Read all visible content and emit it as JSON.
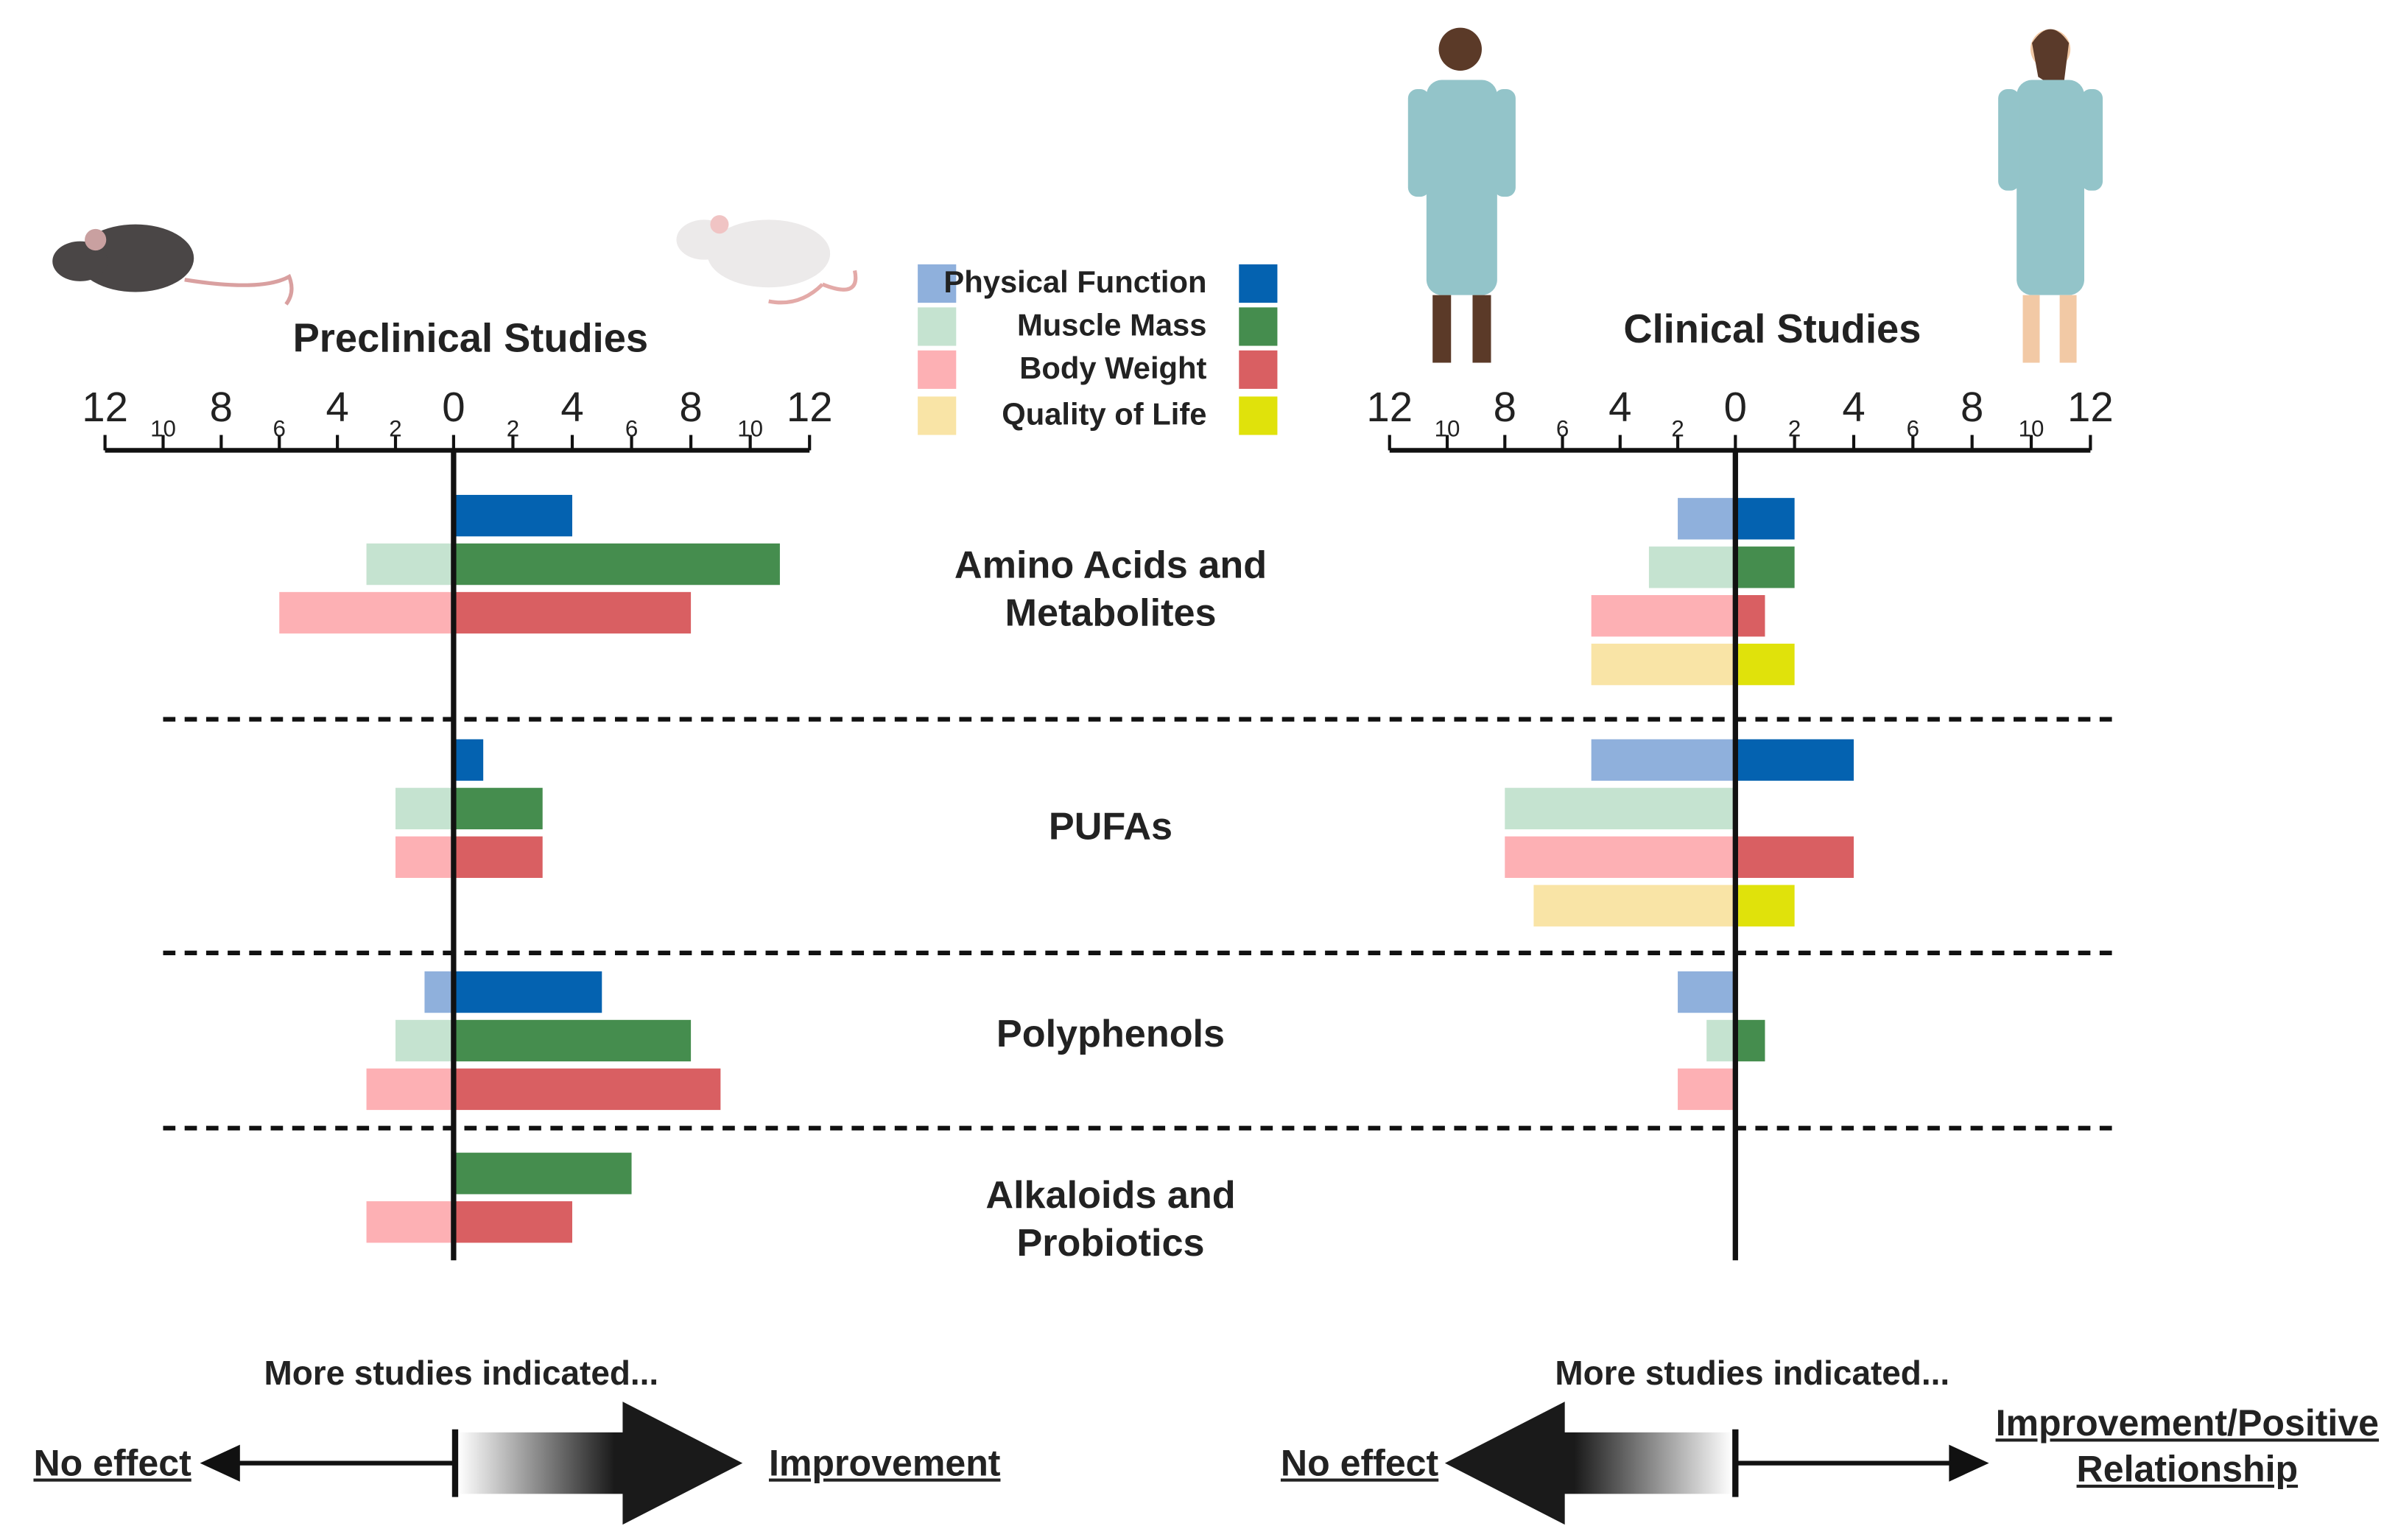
{
  "measures": [
    {
      "name": "Physical Function",
      "light": "#8fb0dc",
      "dark": "#0462b0"
    },
    {
      "name": "Muscle Mass",
      "light": "#c5e3d0",
      "dark": "#458d4e"
    },
    {
      "name": "Body Weight",
      "light": "#fdb0b4",
      "dark": "#d95f62"
    },
    {
      "name": "Quality of Life",
      "light": "#f9e4a6",
      "dark": "#e0e20b"
    }
  ],
  "categories": [
    "Amino Acids and Metabolites",
    "PUFAs",
    "Polyphenols",
    "Alkaloids and Probiotics"
  ],
  "chart_data": [
    {
      "type": "bar",
      "title": "Preclinical Studies",
      "xlim": [
        0,
        12
      ],
      "xticks": [
        0,
        2,
        4,
        6,
        8,
        10,
        12
      ],
      "series": [
        {
          "no_effect": [
            null,
            null,
            1,
            null
          ],
          "improvement": [
            4,
            1,
            5,
            null
          ]
        },
        {
          "no_effect": [
            3,
            2,
            2,
            null
          ],
          "improvement": [
            11,
            3,
            8,
            6
          ]
        },
        {
          "no_effect": [
            6,
            2,
            3,
            3
          ],
          "improvement": [
            8,
            3,
            9,
            4
          ]
        },
        {
          "no_effect": [
            null,
            null,
            null,
            null
          ],
          "improvement": [
            null,
            null,
            null,
            null
          ]
        }
      ]
    },
    {
      "type": "bar",
      "title": "Clinical Studies",
      "xlim": [
        0,
        12
      ],
      "xticks": [
        0,
        2,
        4,
        6,
        8,
        10,
        12
      ],
      "series": [
        {
          "no_effect": [
            2,
            5,
            2,
            null
          ],
          "improvement": [
            2,
            4,
            null,
            null
          ]
        },
        {
          "no_effect": [
            3,
            8,
            1,
            null
          ],
          "improvement": [
            2,
            0,
            1,
            null
          ]
        },
        {
          "no_effect": [
            5,
            8,
            2,
            null
          ],
          "improvement": [
            1,
            4,
            null,
            null
          ]
        },
        {
          "no_effect": [
            5,
            7,
            null,
            null
          ],
          "improvement": [
            2,
            2,
            null,
            null
          ]
        }
      ]
    }
  ],
  "annotations": {
    "left_caption": "More studies indicated...",
    "left_no_effect": "No effect",
    "left_improvement": "Improvement",
    "right_caption": "More studies indicated...",
    "right_no_effect": "No effect",
    "right_improvement": "Improvement/Positive Relationship"
  }
}
